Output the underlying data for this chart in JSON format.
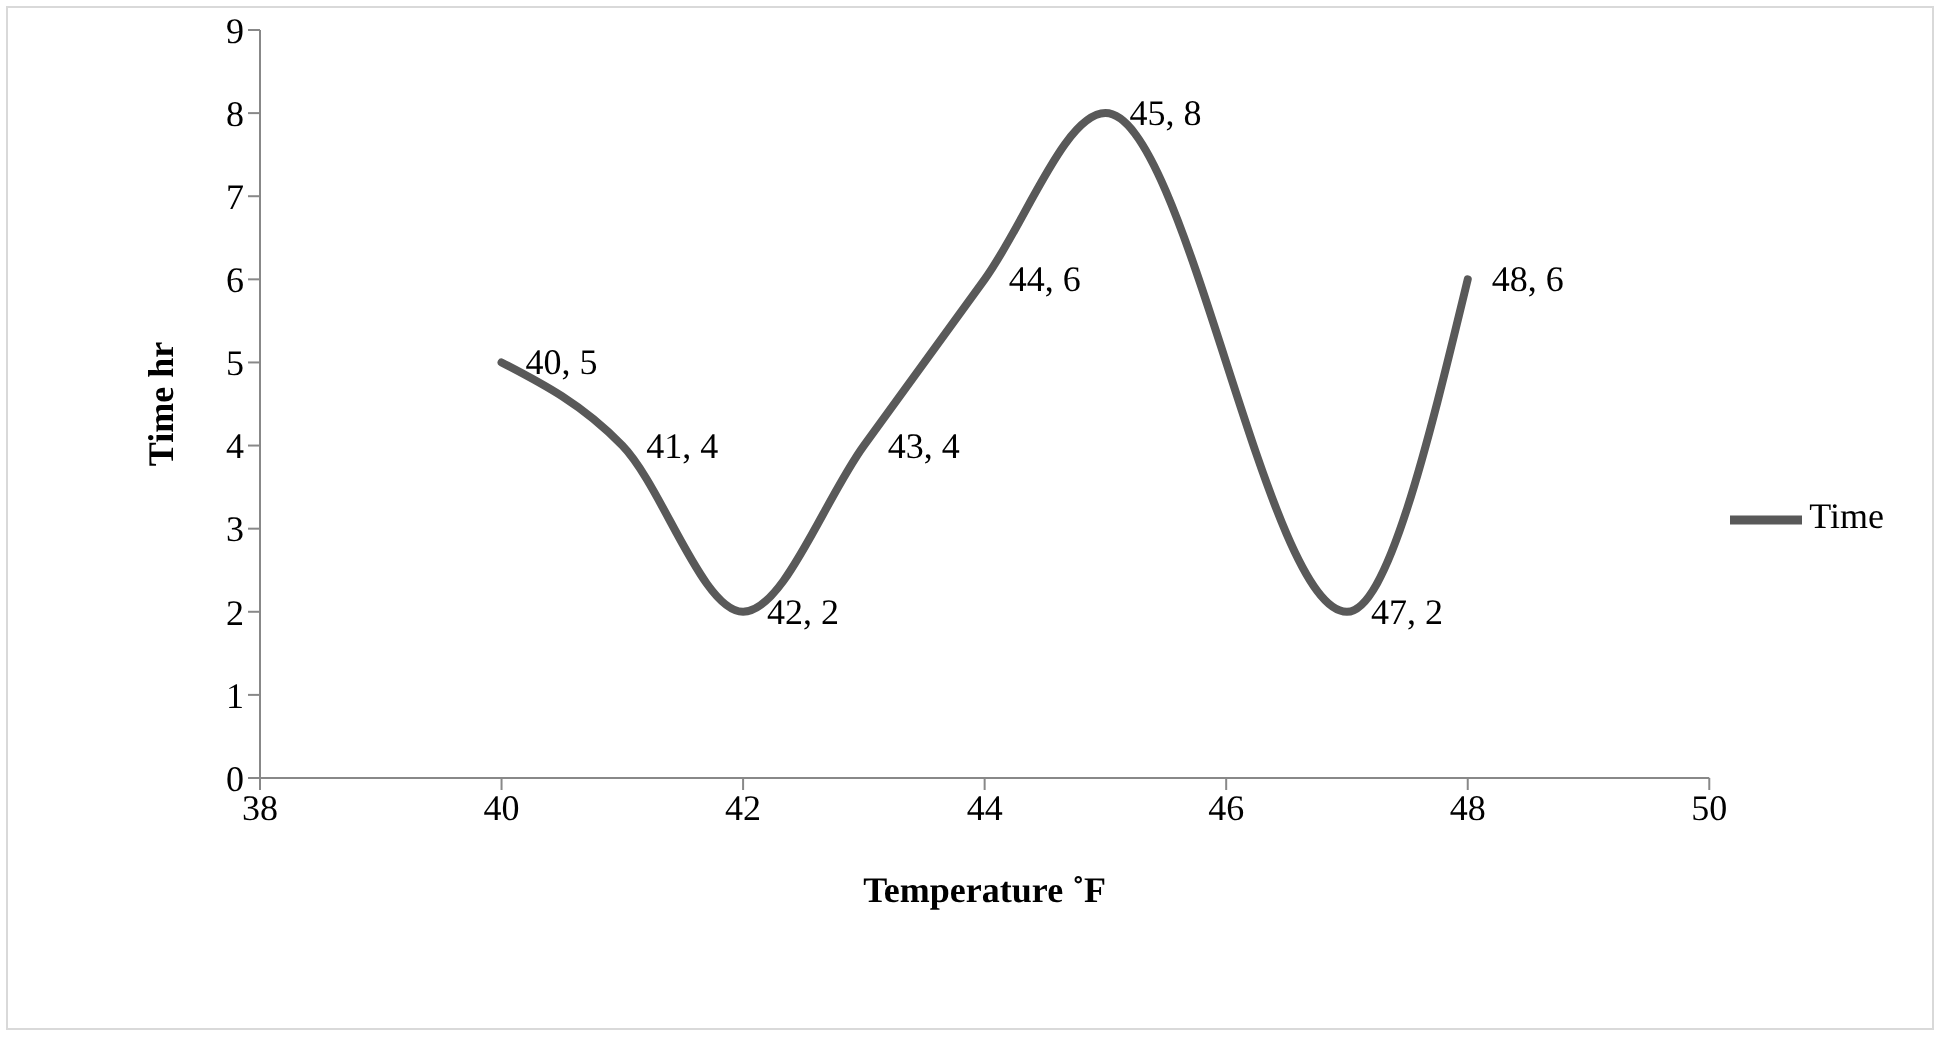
{
  "chart_data": {
    "type": "line",
    "xlabel": "Temperature ˚F",
    "ylabel": "Time  hr",
    "x": [
      40,
      41,
      42,
      43,
      44,
      45,
      47,
      48
    ],
    "series": [
      {
        "name": "Time",
        "color": "#595959",
        "values": [
          5,
          4,
          2,
          4,
          6,
          8,
          2,
          6
        ],
        "value_labels": [
          "40, 5",
          "41, 4",
          "42, 2",
          "43, 4",
          "44, 6",
          "45, 8",
          "47, 2",
          "48, 6"
        ]
      }
    ],
    "xlim": [
      38,
      50
    ],
    "xticks": [
      38,
      40,
      42,
      44,
      46,
      48,
      50
    ],
    "ylim": [
      0,
      9
    ],
    "yticks": [
      0,
      1,
      2,
      3,
      4,
      5,
      6,
      7,
      8,
      9
    ],
    "grid": false,
    "legend": "right",
    "marker": "none",
    "line_style": "solid"
  }
}
